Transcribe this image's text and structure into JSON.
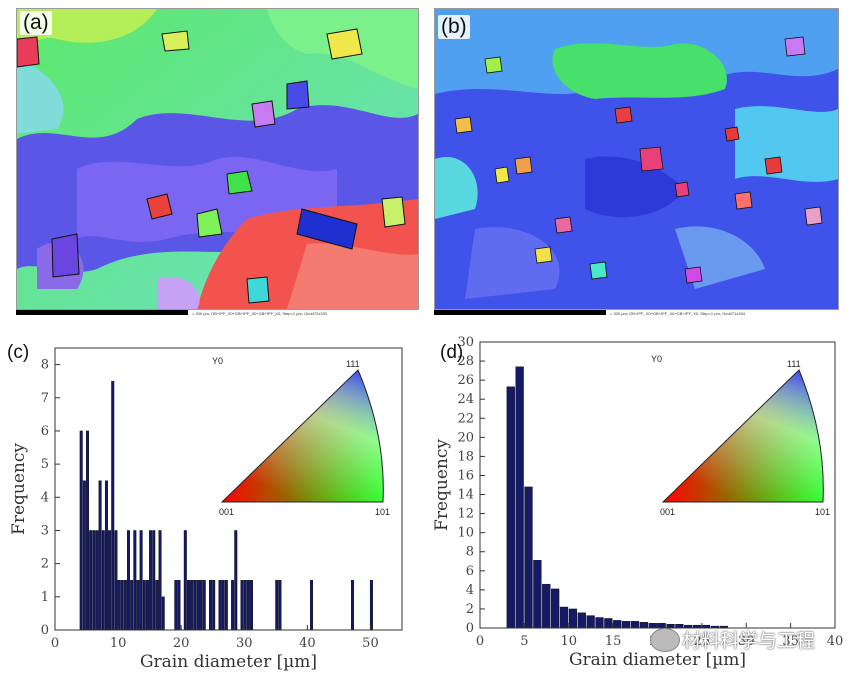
{
  "panels": {
    "a": {
      "label": "(a)",
      "scale_text": "= 200 µm; GB+IPF_X0+GB+IPF_X0+GB+IPF_X0; Step=1 µm; Grid472x333"
    },
    "b": {
      "label": "(b)",
      "scale_text": "= 200 µm; GB+IPF_X0+GB+IPF_X0+GB+IPF_X0; Step=1 µm; Grid471x334"
    },
    "c": {
      "label": "(c)"
    },
    "d": {
      "label": "(d)"
    }
  },
  "legend_triangle": {
    "corner_001": "001",
    "corner_101": "101",
    "corner_111": "111",
    "axis_tag": "Y0"
  },
  "watermark": {
    "text": "材料科学与工程"
  },
  "chart_data": [
    {
      "type": "bar",
      "panel": "c",
      "xlabel": "Grain diameter [µm]",
      "ylabel": "Frequency",
      "xlim": [
        0,
        55
      ],
      "ylim": [
        0,
        8.5
      ],
      "xticks": [
        0,
        10,
        20,
        30,
        40,
        50
      ],
      "yticks": [
        0,
        1,
        2,
        3,
        4,
        5,
        6,
        7,
        8
      ],
      "bar_width": 0.5,
      "bar_color": "#141a66",
      "x": [
        4.2,
        4.7,
        5.2,
        5.7,
        6.2,
        6.7,
        7.2,
        7.7,
        8.2,
        8.7,
        9.2,
        9.7,
        10.2,
        10.7,
        11.2,
        11.7,
        12.2,
        12.7,
        13.2,
        13.7,
        14.2,
        14.7,
        15.2,
        15.7,
        16.2,
        16.7,
        17.2,
        19.2,
        19.7,
        20.7,
        21.2,
        21.7,
        22.2,
        22.7,
        23.2,
        23.7,
        24.7,
        25.2,
        26.2,
        26.7,
        27.2,
        28.2,
        28.7,
        29.7,
        30.2,
        30.7,
        31.2,
        35.2,
        35.7,
        40.7,
        47.2,
        50.2
      ],
      "values": [
        6,
        4.5,
        6,
        3,
        3,
        3,
        4.5,
        3,
        4.5,
        3,
        7.5,
        3,
        1.5,
        1.5,
        1.5,
        3,
        1.5,
        3,
        1.5,
        3,
        1.5,
        1.5,
        3,
        3,
        1.5,
        3,
        1,
        1.5,
        1.5,
        3,
        1.5,
        1.5,
        1.5,
        1.5,
        1.5,
        1.5,
        1.5,
        1.5,
        1.5,
        1.5,
        1.5,
        1.5,
        3,
        1.5,
        1.5,
        1.5,
        1.5,
        1.5,
        1.5,
        1.5,
        1.5,
        1.5
      ]
    },
    {
      "type": "bar",
      "panel": "d",
      "xlabel": "Grain diameter [µm]",
      "ylabel": "Frequency",
      "xlim": [
        0,
        40
      ],
      "ylim": [
        0,
        30
      ],
      "xticks": [
        0,
        5,
        10,
        15,
        20,
        25,
        30,
        35,
        40
      ],
      "yticks": [
        0,
        2,
        4,
        6,
        8,
        10,
        12,
        14,
        16,
        18,
        20,
        22,
        24,
        26,
        28,
        30
      ],
      "bar_width": 0.95,
      "bar_color": "#141a66",
      "x": [
        3.5,
        4.5,
        5.5,
        6.5,
        7.5,
        8.5,
        9.5,
        10.5,
        11.5,
        12.5,
        13.5,
        14.5,
        15.5,
        16.5,
        17.5,
        18.5,
        19.5,
        20.5,
        21.5,
        22.5,
        23.5,
        24.5,
        25.5,
        26.5,
        27.5
      ],
      "values": [
        25.3,
        27.4,
        14.8,
        7.1,
        4.6,
        4.1,
        2.2,
        2.0,
        1.6,
        1.3,
        1.1,
        1.0,
        0.8,
        0.7,
        0.7,
        0.6,
        0.5,
        0.5,
        0.4,
        0.4,
        0.3,
        0.3,
        0.3,
        0.2,
        0.2
      ]
    }
  ]
}
